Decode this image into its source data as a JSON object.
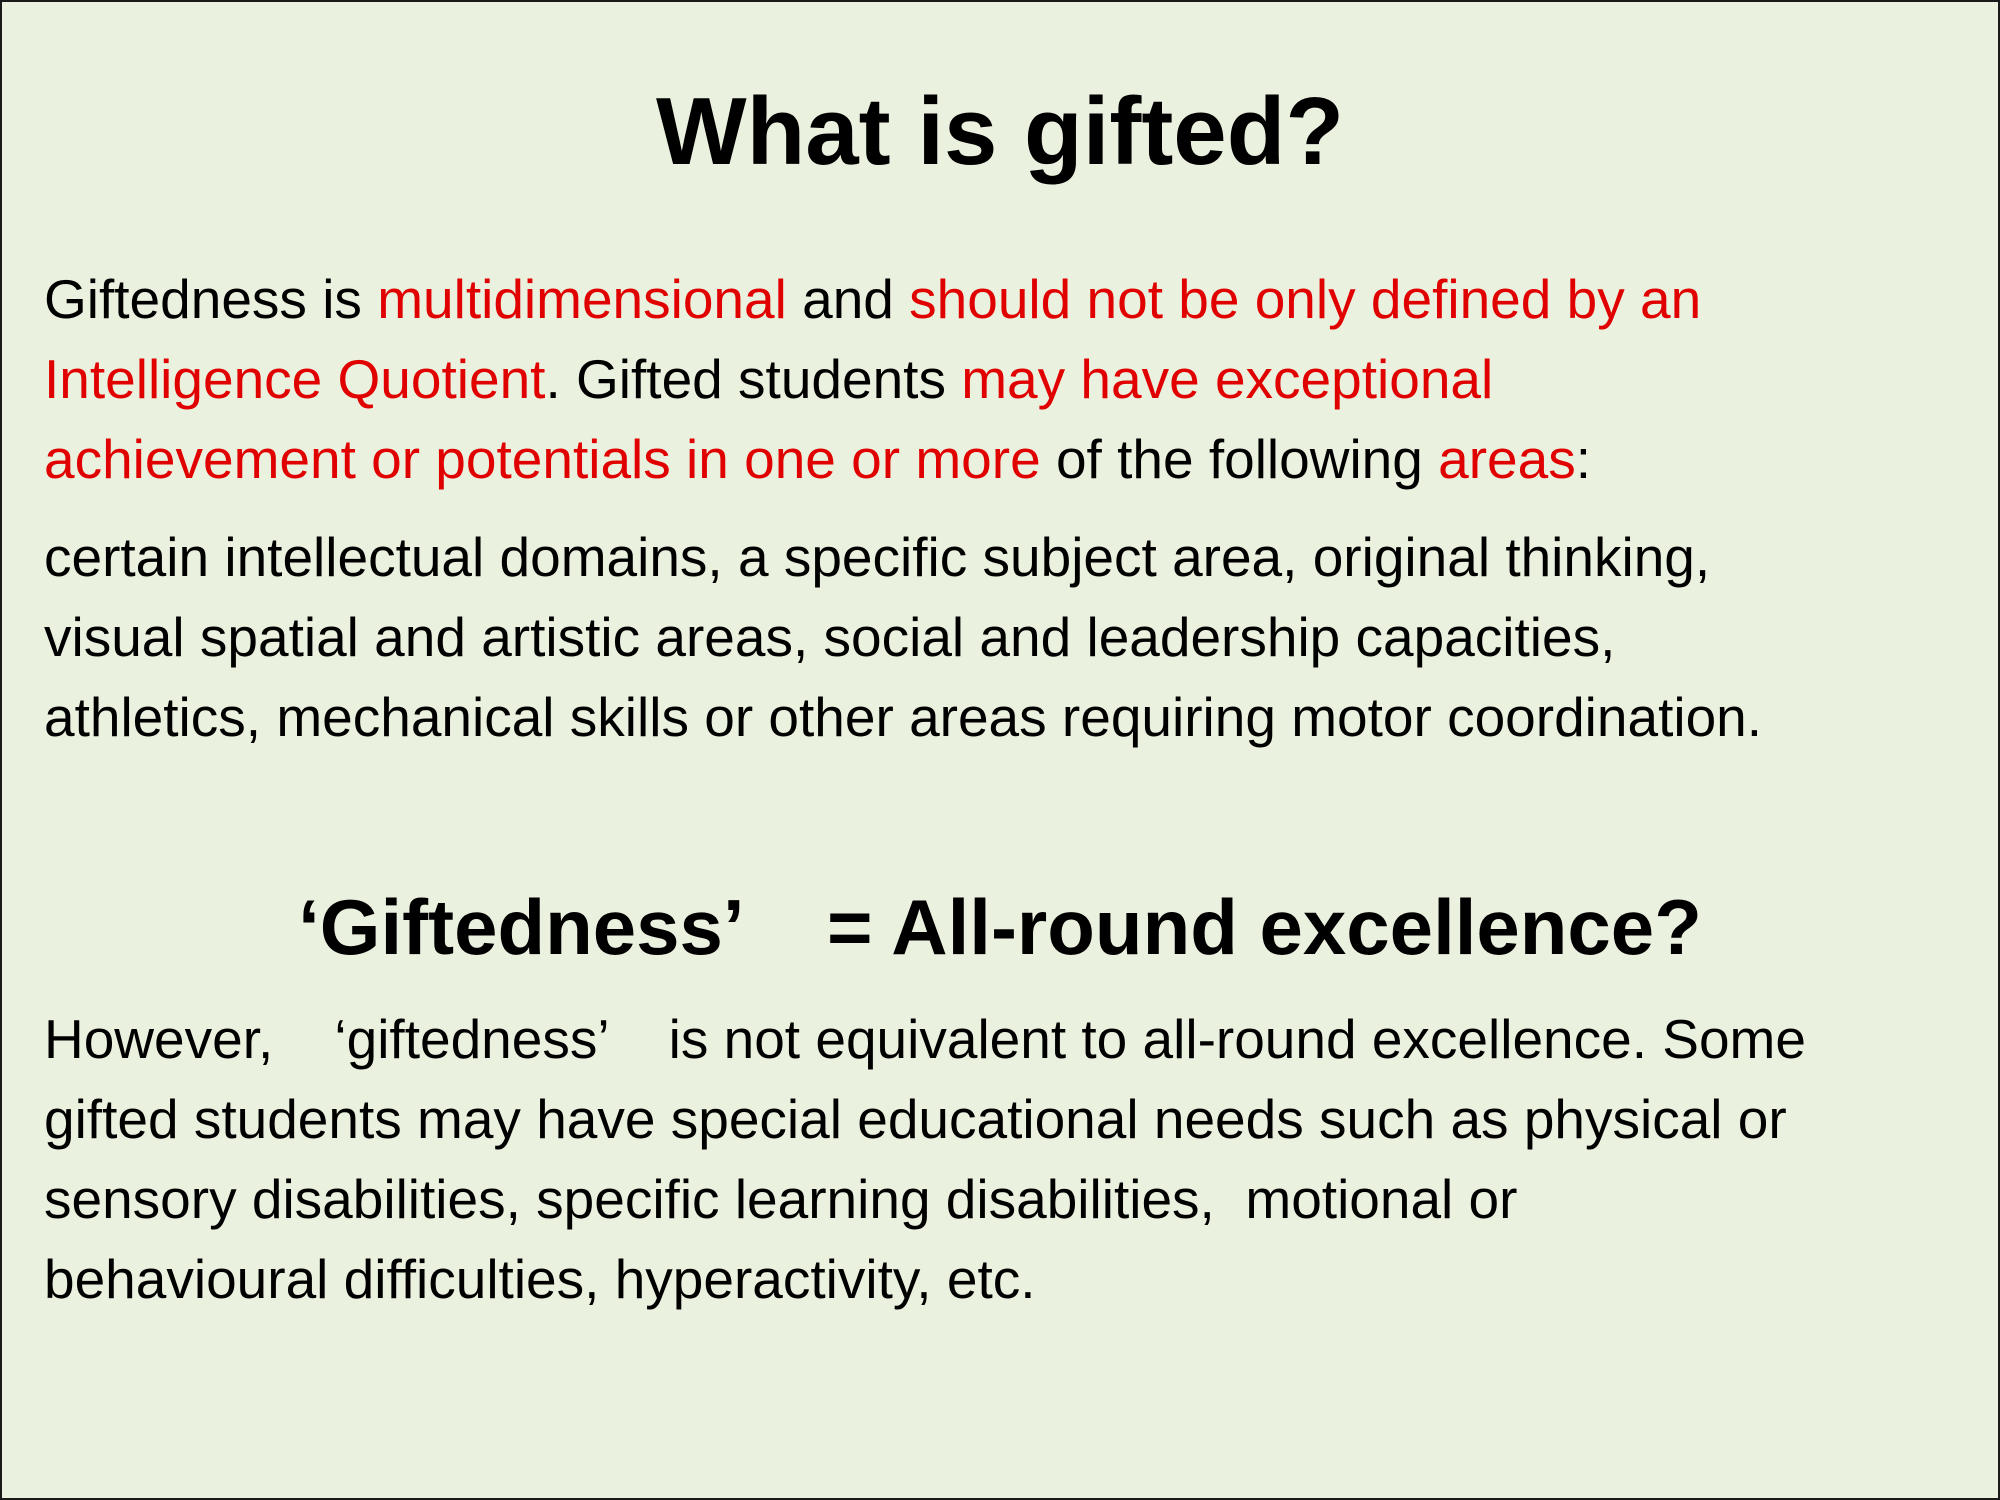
{
  "slide": {
    "title": "What is gifted?",
    "intro": {
      "l1_a": "Giftedness is ",
      "l1_b": "multidimensional",
      "l1_c": " and ",
      "l1_d": "should not be only defined by an",
      "l2_a": "Intelligence Quotient",
      "l2_b": ". Gifted students ",
      "l2_c": "may have exceptional",
      "l3_a": "achievement or potentials in one or more",
      "l3_b": " of the following ",
      "l3_c": "areas",
      "l3_d": ":"
    },
    "areas_lines": [
      "certain intellectual domains, a specific subject area, original thinking,",
      "visual spatial and artistic areas, social and leadership capacities,",
      "athletics, mechanical skills or other areas requiring motor coordination."
    ],
    "subheading": "‘Giftedness’    = All-round excellence?",
    "however_lines": [
      "However,    ‘giftedness’    is not equivalent to all-round excellence. Some",
      "gifted students may have special educational needs such as physical or",
      "sensory disabilities, specific learning disabilities,  motional or",
      "behavioural difficulties, hyperactivity, etc."
    ],
    "colors": {
      "background": "#ebf1df",
      "emphasis": "#e00000",
      "text": "#000000"
    }
  }
}
